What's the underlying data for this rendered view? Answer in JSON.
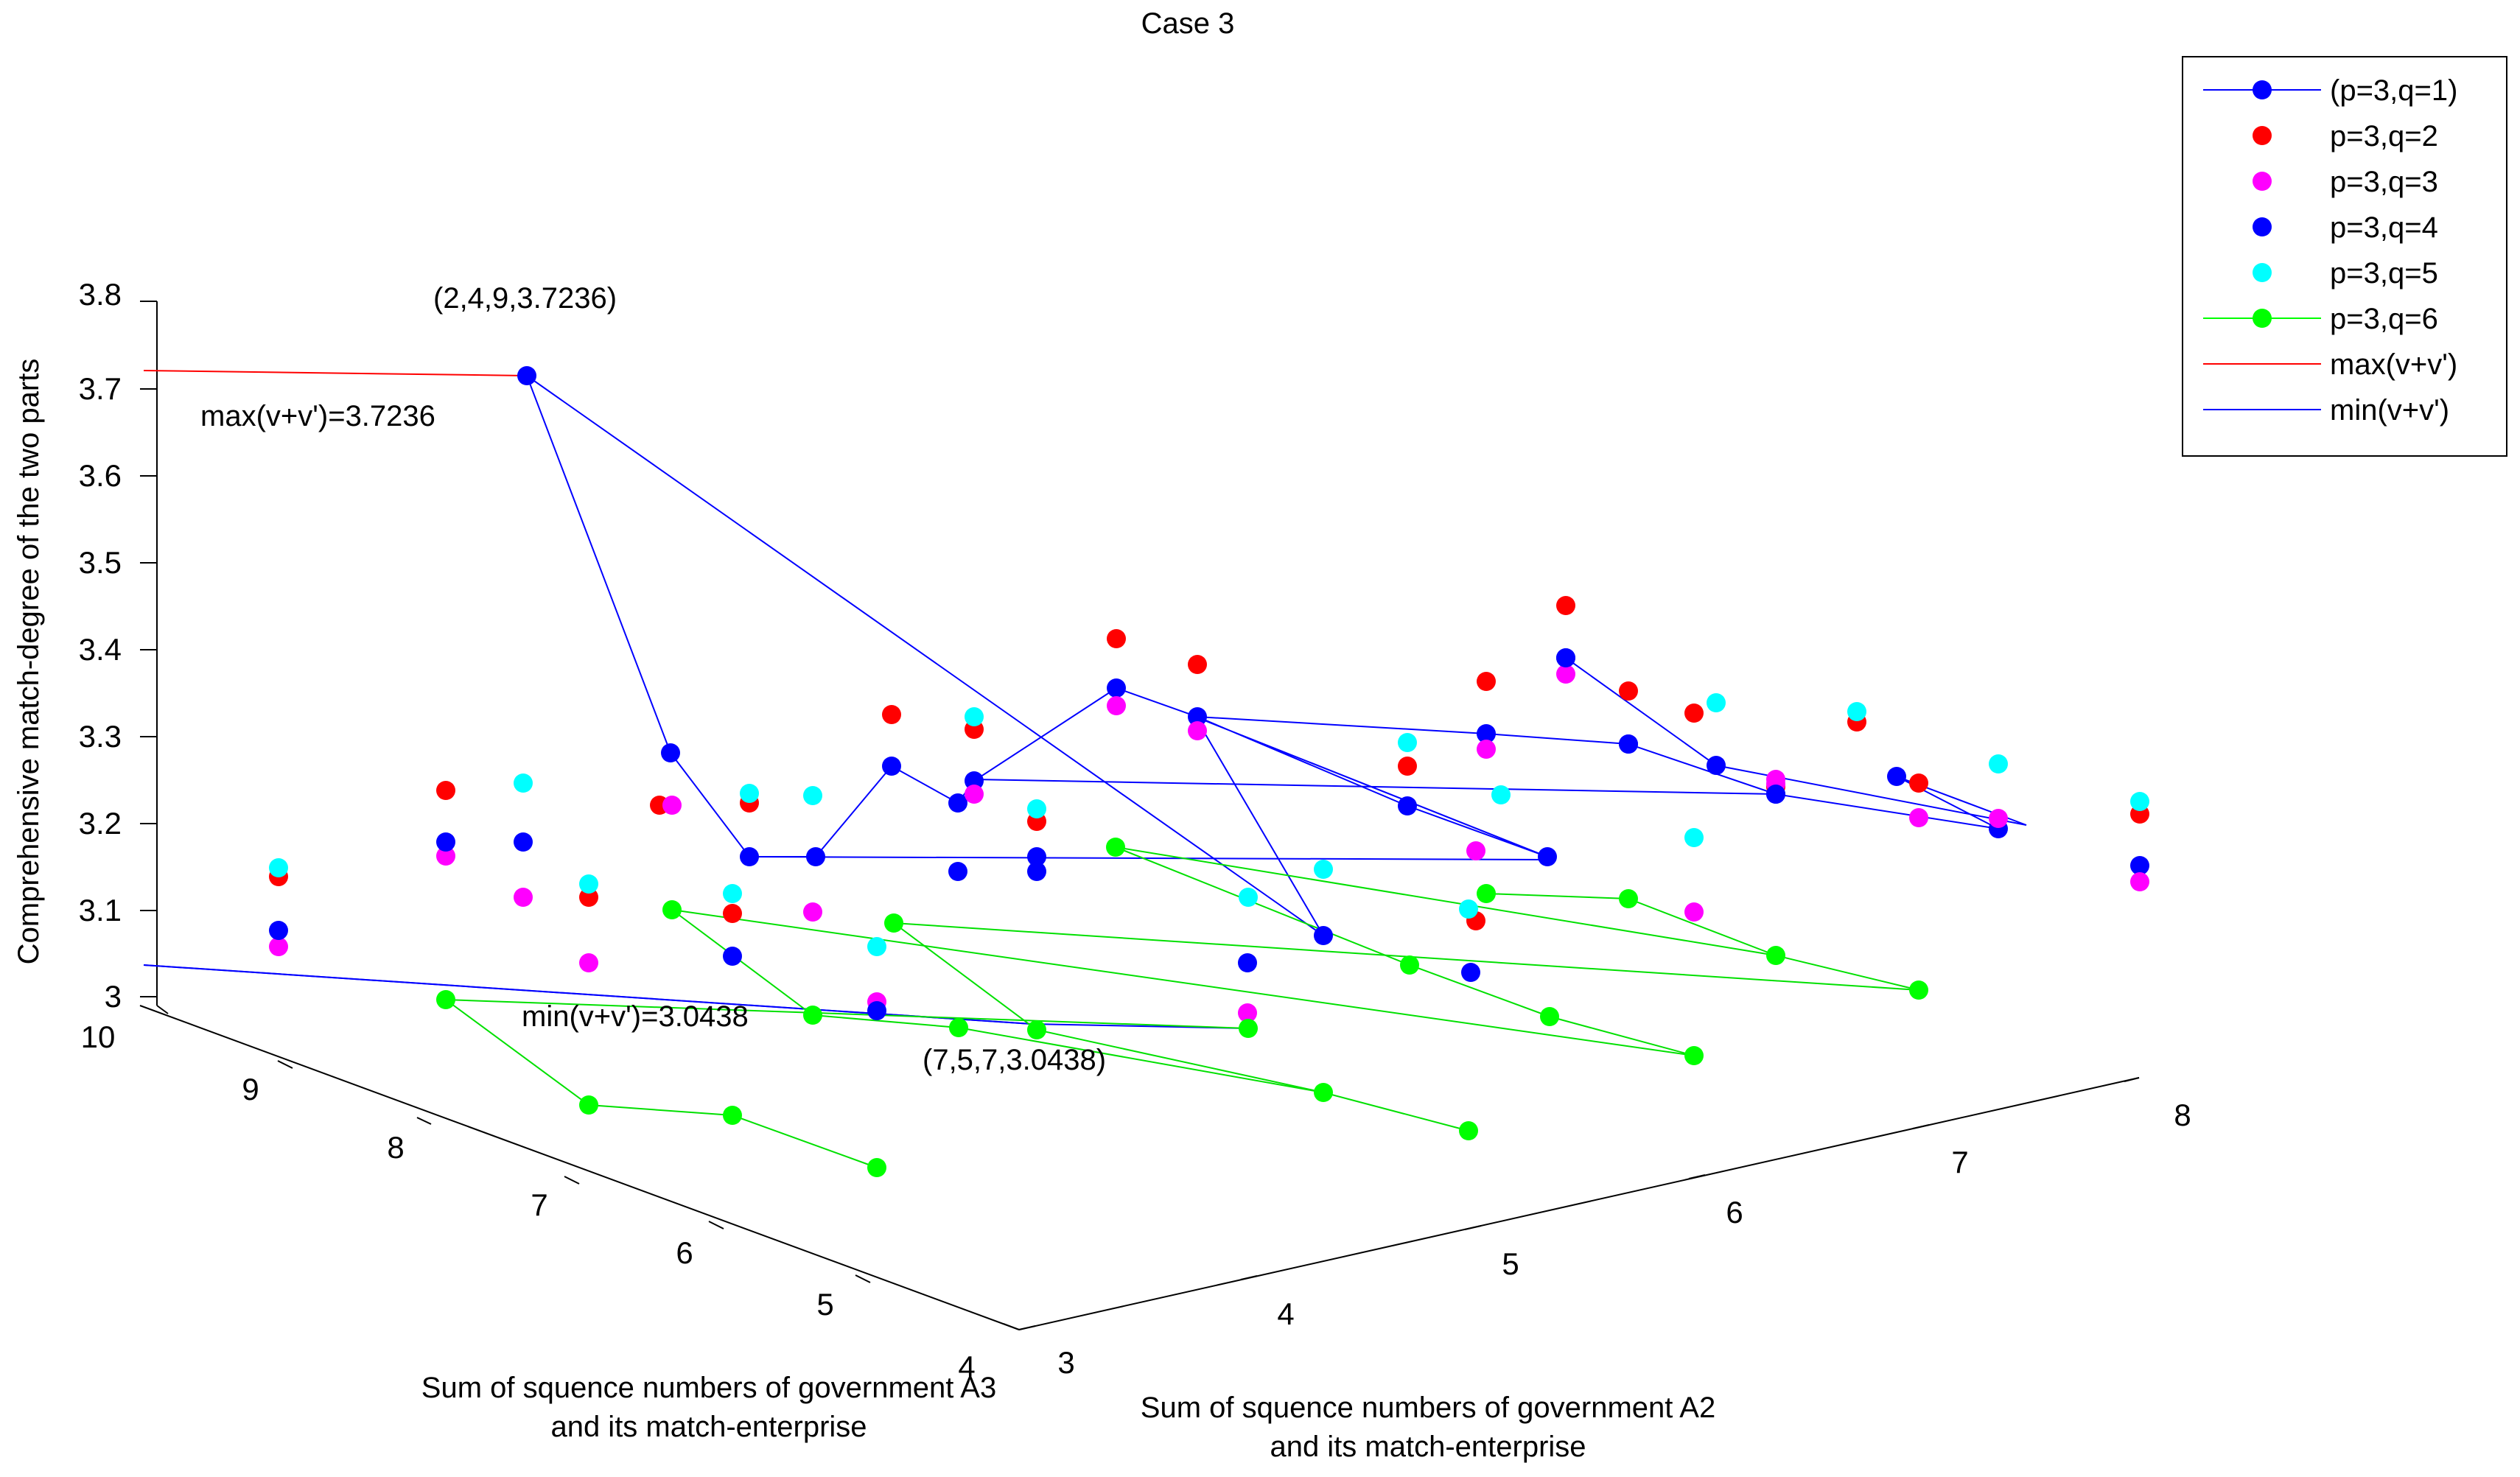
{
  "chart_data": {
    "type": "scatter3d",
    "title": "Case 3",
    "zlabel": "Comprehensive match-degree of the two parts",
    "x_axis_label": [
      "Sum of squence numbers of government A3",
      "and its match-enterprise"
    ],
    "y_axis_label": [
      "Sum of squence numbers of government A2",
      "and its match-enterprise"
    ],
    "z_ticks": [
      "3",
      "3.1",
      "3.2",
      "3.3",
      "3.4",
      "3.5",
      "3.6",
      "3.7",
      "3.8"
    ],
    "x_ticks": [
      "10",
      "9",
      "8",
      "7",
      "6",
      "5",
      "4"
    ],
    "y_ticks": [
      "3",
      "4",
      "5",
      "6",
      "7",
      "8"
    ],
    "zlim": [
      3.0,
      3.8
    ],
    "legend": [
      {
        "label": "(p=3,q=1)",
        "color": "#0000ff",
        "marker": true,
        "line": true
      },
      {
        "label": "p=3,q=2",
        "color": "#ff0000",
        "marker": true,
        "line": false
      },
      {
        "label": "p=3,q=3",
        "color": "#ff00ff",
        "marker": true,
        "line": false
      },
      {
        "label": "p=3,q=4",
        "color": "#0000ff",
        "marker": true,
        "line": false
      },
      {
        "label": "p=3,q=5",
        "color": "#00ffff",
        "marker": true,
        "line": false
      },
      {
        "label": "p=3,q=6",
        "color": "#00ff00",
        "marker": true,
        "line": true
      },
      {
        "label": "max(v+v')",
        "color": "#ff0000",
        "marker": false,
        "line": true
      },
      {
        "label": "min(v+v')",
        "color": "#0000ff",
        "marker": false,
        "line": true
      }
    ],
    "annotations": {
      "max_point": "(2,4,9,3.7236)",
      "max_label": "max(v+v')=3.7236",
      "min_label": "min(v+v')=3.0438",
      "min_point": "(7,5,7,3.0438)"
    },
    "max_value": 3.7236,
    "min_value": 3.0438
  }
}
